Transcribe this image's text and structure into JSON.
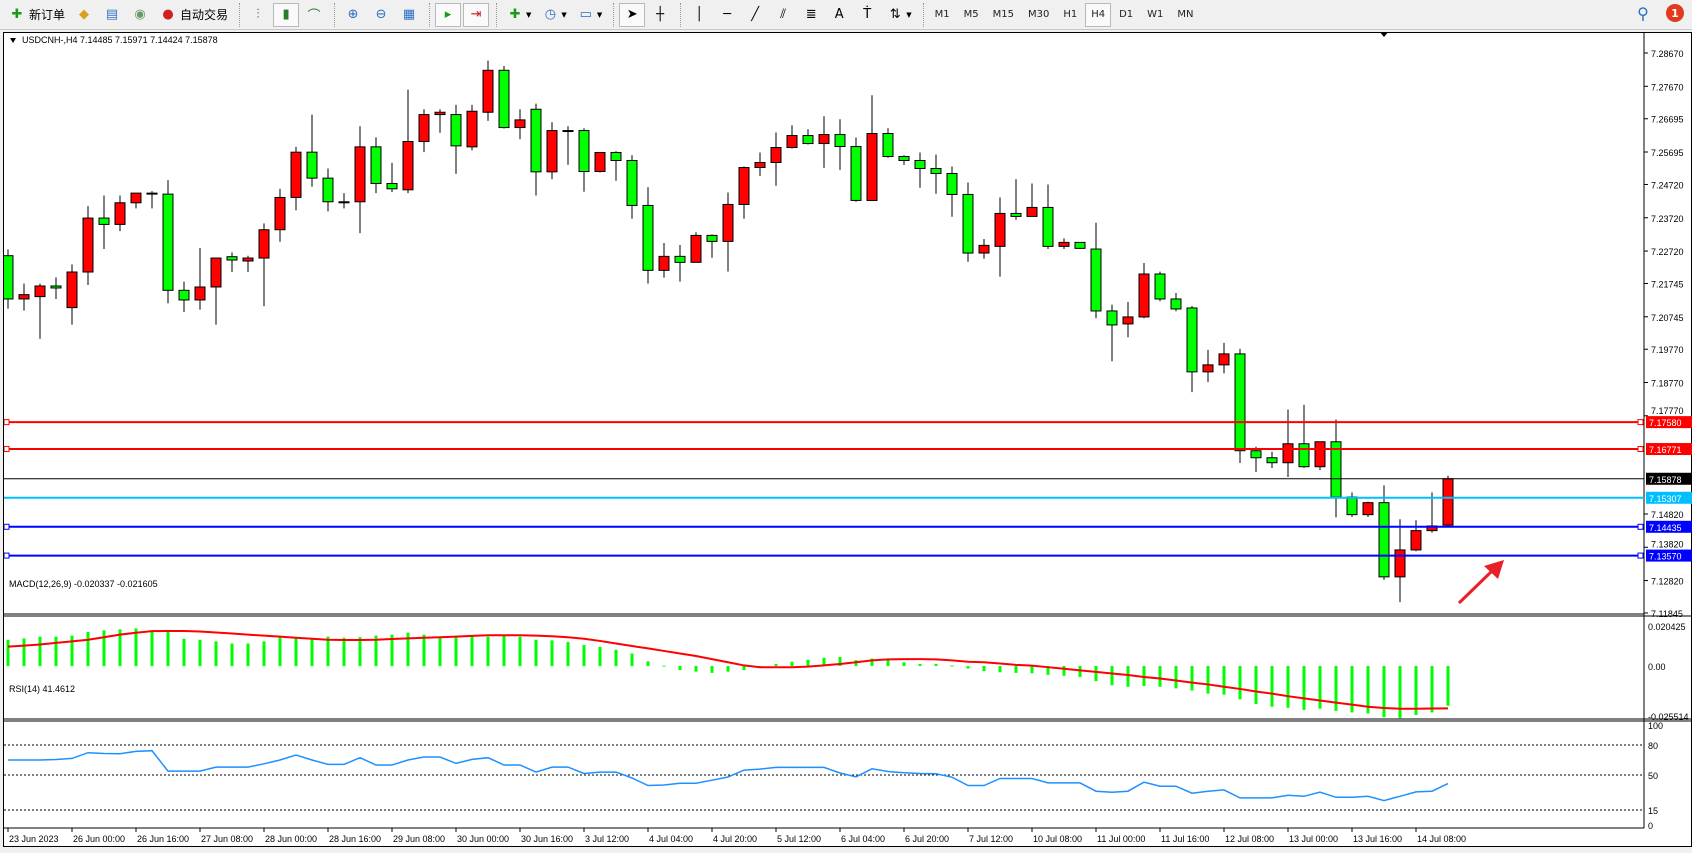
{
  "toolbar": {
    "new_order_label": "新订单",
    "auto_trading_label": "自动交易",
    "timeframes": [
      "M1",
      "M5",
      "M15",
      "M30",
      "H1",
      "H4",
      "D1",
      "W1",
      "MN"
    ],
    "active_timeframe": "H4",
    "notification_count": "1"
  },
  "chart": {
    "header": "USDCNH-,H4  7.14485 7.15971 7.14424 7.15878",
    "bull_color": "#ff0000",
    "bear_color": "#00ff00",
    "price_axis_labels": [
      "7.28670",
      "7.27670",
      "7.26695",
      "7.25695",
      "7.24720",
      "7.23720",
      "7.22720",
      "7.21745",
      "7.20745",
      "7.19770",
      "7.18770",
      "7.17770",
      "7.14820",
      "7.13820",
      "7.12820",
      "7.11845"
    ],
    "hlines": [
      {
        "price": 7.1758,
        "label": "7.17580",
        "color": "#ff0000"
      },
      {
        "price": 7.16771,
        "label": "7.16771",
        "color": "#ff0000"
      },
      {
        "price": 7.15878,
        "label": "7.15878",
        "color": "#000000"
      },
      {
        "price": 7.15307,
        "label": "7.15307",
        "color": "#00bfff"
      },
      {
        "price": 7.14435,
        "label": "7.14435",
        "color": "#0000ff"
      },
      {
        "price": 7.1357,
        "label": "7.13570",
        "color": "#0000ff"
      }
    ],
    "candles_ohlc": [
      [
        7.2258,
        7.2277,
        7.2099,
        7.2128
      ],
      [
        7.2128,
        7.2174,
        7.2093,
        7.2141
      ],
      [
        7.2135,
        7.2174,
        7.2008,
        7.2167
      ],
      [
        7.2167,
        7.2193,
        7.2128,
        7.2161
      ],
      [
        7.2102,
        7.2232,
        7.2051,
        7.2209
      ],
      [
        7.2209,
        7.2407,
        7.217,
        7.2371
      ],
      [
        7.2371,
        7.2439,
        7.2278,
        7.2352
      ],
      [
        7.2352,
        7.2439,
        7.2332,
        7.2417
      ],
      [
        7.2417,
        7.2446,
        7.24,
        7.2446
      ],
      [
        7.2446,
        7.2452,
        7.24,
        7.2443
      ],
      [
        7.2443,
        7.2485,
        7.2115,
        7.2154
      ],
      [
        7.2154,
        7.218,
        7.2089,
        7.2125
      ],
      [
        7.2125,
        7.2281,
        7.2096,
        7.2164
      ],
      [
        7.2164,
        7.2251,
        7.2051,
        7.2251
      ],
      [
        7.2255,
        7.2268,
        7.2209,
        7.2245
      ],
      [
        7.2242,
        7.2258,
        7.2209,
        7.2251
      ],
      [
        7.2251,
        7.2355,
        7.2106,
        7.2336
      ],
      [
        7.2336,
        7.2459,
        7.23,
        7.2433
      ],
      [
        7.2433,
        7.2585,
        7.2394,
        7.2569
      ],
      [
        7.2569,
        7.2682,
        7.2465,
        7.2491
      ],
      [
        7.2491,
        7.252,
        7.2391,
        7.242
      ],
      [
        7.242,
        7.2446,
        7.24,
        7.2417
      ],
      [
        7.242,
        7.2647,
        7.2326,
        7.2585
      ],
      [
        7.2585,
        7.2614,
        7.2446,
        7.2475
      ],
      [
        7.2475,
        7.2537,
        7.2449,
        7.2459
      ],
      [
        7.2456,
        7.2757,
        7.2446,
        7.2601
      ],
      [
        7.2601,
        7.2698,
        7.2569,
        7.2682
      ],
      [
        7.2682,
        7.2698,
        7.2627,
        7.2689
      ],
      [
        7.2682,
        7.2711,
        7.2504,
        7.2588
      ],
      [
        7.2585,
        7.2711,
        7.2575,
        7.2692
      ],
      [
        7.2689,
        7.2844,
        7.2663,
        7.2815
      ],
      [
        7.2815,
        7.2828,
        7.264,
        7.2643
      ],
      [
        7.2643,
        7.2698,
        7.2608,
        7.2666
      ],
      [
        7.2698,
        7.2715,
        7.2439,
        7.251
      ],
      [
        7.251,
        7.2659,
        7.2488,
        7.2634
      ],
      [
        7.2634,
        7.2647,
        7.2531,
        7.2634
      ],
      [
        7.2634,
        7.2641,
        7.245,
        7.2511
      ],
      [
        7.2511,
        7.257,
        7.2508,
        7.2568
      ],
      [
        7.2568,
        7.2572,
        7.2483,
        7.2544
      ],
      [
        7.2544,
        7.256,
        7.2369,
        7.2409
      ],
      [
        7.2409,
        7.2464,
        7.2174,
        7.2214
      ],
      [
        7.2214,
        7.2296,
        7.2192,
        7.2256
      ],
      [
        7.2256,
        7.229,
        7.218,
        7.2238
      ],
      [
        7.2238,
        7.2328,
        7.2238,
        7.2319
      ],
      [
        7.2319,
        7.2322,
        7.2252,
        7.2301
      ],
      [
        7.2301,
        7.2448,
        7.221,
        7.2412
      ],
      [
        7.2412,
        7.2526,
        7.2369,
        7.2523
      ],
      [
        7.2523,
        7.2568,
        7.2498,
        7.2538
      ],
      [
        7.2538,
        7.2628,
        7.2468,
        7.2583
      ],
      [
        7.2583,
        7.265,
        7.258,
        7.2619
      ],
      [
        7.2619,
        7.2638,
        7.2592,
        7.2595
      ],
      [
        7.2595,
        7.2677,
        7.2522,
        7.2622
      ],
      [
        7.2622,
        7.2668,
        7.2516,
        7.2586
      ],
      [
        7.2586,
        7.2613,
        7.242,
        7.2424
      ],
      [
        7.2424,
        7.274,
        7.2424,
        7.2625
      ],
      [
        7.2625,
        7.2641,
        7.2552,
        7.2556
      ],
      [
        7.2556,
        7.256,
        7.2531,
        7.2544
      ],
      [
        7.2544,
        7.2568,
        7.2462,
        7.252
      ],
      [
        7.252,
        7.2562,
        7.2444,
        7.2505
      ],
      [
        7.2505,
        7.2526,
        7.2375,
        7.2442
      ],
      [
        7.2442,
        7.2478,
        7.224,
        7.2266
      ],
      [
        7.2266,
        7.2308,
        7.2249,
        7.2289
      ],
      [
        7.2286,
        7.2433,
        7.2195,
        7.2385
      ],
      [
        7.2385,
        7.2488,
        7.2366,
        7.2376
      ],
      [
        7.2376,
        7.2475,
        7.2376,
        7.2403
      ],
      [
        7.2403,
        7.2472,
        7.2278,
        7.2286
      ],
      [
        7.2286,
        7.231,
        7.2278,
        7.2298
      ],
      [
        7.2298,
        7.2298,
        7.2278,
        7.228
      ],
      [
        7.2278,
        7.2357,
        7.207,
        7.2092
      ],
      [
        7.2092,
        7.2111,
        7.1941,
        7.205
      ],
      [
        7.2053,
        7.2119,
        7.2013,
        7.2074
      ],
      [
        7.2074,
        7.2236,
        7.207,
        7.2203
      ],
      [
        7.2203,
        7.221,
        7.2121,
        7.2128
      ],
      [
        7.2128,
        7.2146,
        7.2091,
        7.2098
      ],
      [
        7.2101,
        7.2107,
        7.1848,
        7.1909
      ],
      [
        7.1909,
        7.1975,
        7.1878,
        7.193
      ],
      [
        7.193,
        7.1996,
        7.1905,
        7.1963
      ],
      [
        7.1963,
        7.1978,
        7.1635,
        7.1672
      ],
      [
        7.1672,
        7.1684,
        7.1608,
        7.1651
      ],
      [
        7.1651,
        7.1669,
        7.162,
        7.1636
      ],
      [
        7.1636,
        7.1796,
        7.1593,
        7.1693
      ],
      [
        7.1693,
        7.181,
        7.162,
        7.1624
      ],
      [
        7.1624,
        7.1699,
        7.1614,
        7.1699
      ],
      [
        7.1699,
        7.1766,
        7.1472,
        7.1533
      ],
      [
        7.1533,
        7.1547,
        7.1473,
        7.148
      ],
      [
        7.148,
        7.1519,
        7.1473,
        7.1516
      ],
      [
        7.1516,
        7.1568,
        7.1284,
        7.1293
      ],
      [
        7.1293,
        7.1466,
        7.1217,
        7.1374
      ],
      [
        7.1374,
        7.1463,
        7.137,
        7.1432
      ],
      [
        7.1432,
        7.1547,
        7.1426,
        7.1446
      ],
      [
        7.14485,
        7.15971,
        7.14424,
        7.15878
      ]
    ],
    "time_labels": [
      "23 Jun 2023",
      "26 Jun 00:00",
      "26 Jun 16:00",
      "27 Jun 08:00",
      "28 Jun 00:00",
      "28 Jun 16:00",
      "29 Jun 08:00",
      "30 Jun 00:00",
      "30 Jun 16:00",
      "3 Jul 12:00",
      "4 Jul 04:00",
      "4 Jul 20:00",
      "5 Jul 12:00",
      "6 Jul 04:00",
      "6 Jul 20:00",
      "7 Jul 12:00",
      "10 Jul 08:00",
      "11 Jul 00:00",
      "11 Jul 16:00",
      "12 Jul 08:00",
      "13 Jul 00:00",
      "13 Jul 16:00",
      "14 Jul 08:00"
    ],
    "arrow_color": "#e8202a"
  },
  "macd": {
    "label": "MACD(12,26,9) -0.020337 -0.021605",
    "axis_labels": [
      "0.020425",
      "0.00",
      "-0.025514"
    ],
    "range": [
      -0.025514,
      0.020425
    ],
    "hist_color": "#00ff00",
    "signal_color": "#ff0000",
    "histogram": [
      0.0134,
      0.0141,
      0.015,
      0.015,
      0.0155,
      0.0174,
      0.0182,
      0.0187,
      0.0192,
      0.0179,
      0.0176,
      0.0139,
      0.0134,
      0.0126,
      0.0115,
      0.0115,
      0.0126,
      0.015,
      0.0144,
      0.0139,
      0.015,
      0.0144,
      0.0147,
      0.0155,
      0.016,
      0.017,
      0.016,
      0.015,
      0.015,
      0.015,
      0.015,
      0.0155,
      0.015,
      0.0134,
      0.0131,
      0.0122,
      0.0107,
      0.0098,
      0.0083,
      0.0064,
      0.0024,
      0.0002,
      -0.0021,
      -0.0029,
      -0.0035,
      -0.0029,
      -0.0021,
      -0.0003,
      0.0011,
      0.0022,
      0.0032,
      0.0042,
      0.0046,
      0.003,
      0.0038,
      0.0035,
      0.0019,
      0.0011,
      0.0011,
      0.0003,
      -0.0013,
      -0.0026,
      -0.0032,
      -0.0035,
      -0.0037,
      -0.0045,
      -0.005,
      -0.0056,
      -0.0077,
      -0.0098,
      -0.0106,
      -0.0102,
      -0.0106,
      -0.0114,
      -0.0125,
      -0.0141,
      -0.0146,
      -0.017,
      -0.0194,
      -0.0208,
      -0.0213,
      -0.0224,
      -0.0218,
      -0.0229,
      -0.0237,
      -0.0242,
      -0.0261,
      -0.0266,
      -0.025,
      -0.0237,
      -0.0203
    ],
    "signal": [
      0.0099,
      0.0104,
      0.011,
      0.0118,
      0.0126,
      0.0134,
      0.0147,
      0.016,
      0.017,
      0.0178,
      0.0179,
      0.0179,
      0.0176,
      0.0171,
      0.0166,
      0.016,
      0.0155,
      0.015,
      0.0144,
      0.0139,
      0.0134,
      0.0133,
      0.0133,
      0.0134,
      0.0138,
      0.0141,
      0.0144,
      0.0147,
      0.015,
      0.0154,
      0.0157,
      0.0157,
      0.0157,
      0.0155,
      0.0152,
      0.0147,
      0.0139,
      0.0128,
      0.0115,
      0.0102,
      0.009,
      0.0077,
      0.0064,
      0.0051,
      0.0035,
      0.0019,
      0.0003,
      -0.0006,
      -0.0006,
      -0.0006,
      -0.0003,
      0.0003,
      0.001,
      0.0019,
      0.0029,
      0.0034,
      0.0035,
      0.0035,
      0.0034,
      0.0029,
      0.0022,
      0.0019,
      0.0013,
      0.0006,
      0.0002,
      -0.0006,
      -0.0014,
      -0.0022,
      -0.003,
      -0.0038,
      -0.0046,
      -0.0056,
      -0.0064,
      -0.0074,
      -0.0085,
      -0.0094,
      -0.0106,
      -0.0117,
      -0.013,
      -0.0141,
      -0.0154,
      -0.0165,
      -0.0176,
      -0.0187,
      -0.0197,
      -0.0208,
      -0.0214,
      -0.0218,
      -0.0218,
      -0.0217,
      -0.0216
    ]
  },
  "rsi": {
    "label": "RSI(14) 41.4612",
    "axis_labels": [
      "100",
      "80",
      "50",
      "15",
      "0"
    ],
    "levels": [
      80,
      50,
      15
    ],
    "color": "#1e90ff",
    "values": [
      65,
      65,
      65,
      65.5,
      66.6,
      72.3,
      71.5,
      71.3,
      73.6,
      74.3,
      53.9,
      53.9,
      53.9,
      57.9,
      57.9,
      57.9,
      61.2,
      65,
      70,
      65,
      60.6,
      60.6,
      67.3,
      60,
      60,
      65,
      68,
      68,
      61.6,
      65.6,
      67.3,
      60,
      60,
      52.9,
      57.9,
      57.9,
      51.5,
      52.9,
      52.9,
      47,
      39.5,
      40,
      41.8,
      41.8,
      44.8,
      48,
      54.9,
      55.9,
      57.6,
      57.6,
      57.6,
      57.6,
      52,
      48.2,
      56.2,
      53.5,
      52.2,
      51.5,
      51.2,
      47.8,
      39.5,
      39.5,
      46.5,
      46.5,
      46.5,
      42.1,
      42.1,
      42.1,
      33.8,
      32.8,
      33.8,
      42.8,
      38.8,
      38.8,
      31.8,
      33.8,
      35.1,
      27.1,
      27.1,
      27.1,
      29.8,
      28.7,
      32.8,
      27.7,
      27.7,
      28.7,
      24.4,
      28.7,
      33.1,
      33.8,
      41.46
    ]
  }
}
